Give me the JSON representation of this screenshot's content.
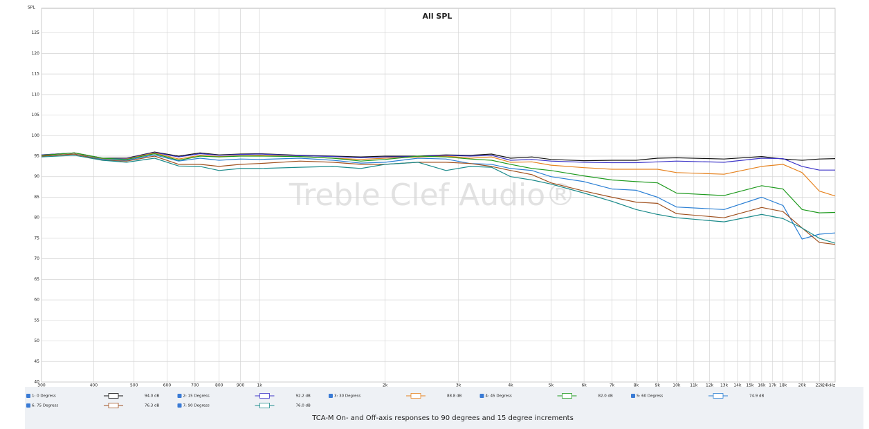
{
  "chart_data": {
    "type": "line",
    "title": "All SPL",
    "ylabel": "SPL",
    "watermark": "Treble Clef Audio®",
    "caption": "TCA-M On- and Off-axis responses to 90 degrees and 15 degree increments",
    "log_x": true,
    "grid": true,
    "xlim": [
      300,
      24000
    ],
    "ylim": [
      40,
      131
    ],
    "xticks": [
      300,
      400,
      500,
      600,
      700,
      800,
      900,
      {
        "value": 1000,
        "label": "1k"
      },
      {
        "value": 2000,
        "label": "2k"
      },
      {
        "value": 3000,
        "label": "3k"
      },
      {
        "value": 4000,
        "label": "4k"
      },
      {
        "value": 5000,
        "label": "5k"
      },
      {
        "value": 6000,
        "label": "6k"
      },
      {
        "value": 7000,
        "label": "7k"
      },
      {
        "value": 8000,
        "label": "8k"
      },
      {
        "value": 9000,
        "label": "9k"
      },
      {
        "value": 10000,
        "label": "10k"
      },
      {
        "value": 11000,
        "label": "11k"
      },
      {
        "value": 12000,
        "label": "12k"
      },
      {
        "value": 13000,
        "label": "13k"
      },
      {
        "value": 14000,
        "label": "14k"
      },
      {
        "value": 15000,
        "label": "15k"
      },
      {
        "value": 16000,
        "label": "16k"
      },
      {
        "value": 17000,
        "label": "17k"
      },
      {
        "value": 18000,
        "label": "18k"
      },
      {
        "value": 20000,
        "label": "20k"
      },
      {
        "value": 22000,
        "label": "22k"
      },
      {
        "value": 24000,
        "label": "24kHz"
      }
    ],
    "yticks": [
      40,
      45,
      50,
      55,
      60,
      65,
      70,
      75,
      80,
      85,
      90,
      95,
      100,
      105,
      110,
      115,
      120,
      125
    ],
    "x": [
      300,
      360,
      420,
      480,
      560,
      640,
      720,
      800,
      900,
      1000,
      1250,
      1500,
      1750,
      2000,
      2400,
      2800,
      3200,
      3600,
      4000,
      4500,
      5000,
      6000,
      7000,
      8000,
      9000,
      10000,
      13000,
      16000,
      18000,
      20000,
      22000,
      24000
    ],
    "series": [
      {
        "name": "1: 0 Degress",
        "level": "94.0 dB",
        "color": "#111111",
        "values": [
          95.3,
          95.8,
          94.5,
          94.5,
          96,
          95,
          95.8,
          95.3,
          95.5,
          95.6,
          95.2,
          95,
          94.8,
          95,
          95,
          95.3,
          95.2,
          95.5,
          94.5,
          94.8,
          94.2,
          93.9,
          94,
          94,
          94.5,
          94.6,
          94.3,
          94.9,
          94.3,
          94,
          94.3,
          94.4
        ]
      },
      {
        "name": "2: 15 Degress",
        "level": "92.2 dB",
        "color": "#3d35c8",
        "values": [
          95.3,
          95.8,
          94.4,
          94.4,
          95.9,
          94.8,
          95.6,
          95.2,
          95.4,
          95.5,
          95.1,
          94.9,
          94.6,
          94.8,
          94.9,
          95.2,
          95,
          95.2,
          94,
          94.2,
          93.8,
          93.5,
          93.4,
          93.4,
          93.6,
          93.8,
          93.5,
          94.5,
          94.4,
          92.5,
          91.6,
          91.6
        ]
      },
      {
        "name": "3: 30 Degress",
        "level": "88.8 dB",
        "color": "#e6821e",
        "values": [
          95.2,
          95.8,
          94.3,
          94.3,
          95.8,
          94.3,
          95.2,
          94.9,
          95.1,
          95.2,
          94.9,
          94.5,
          94.2,
          94.5,
          94.8,
          95,
          94.5,
          94.8,
          93.5,
          93.6,
          92.8,
          92.2,
          91.8,
          91.8,
          91.8,
          91,
          90.6,
          92.5,
          93,
          91,
          86.5,
          85.3
        ]
      },
      {
        "name": "4: 45 Degress",
        "level": "82.0 dB",
        "color": "#1e9a1e",
        "values": [
          95.2,
          95.8,
          94.5,
          94.2,
          95.6,
          94,
          95,
          94.8,
          95,
          95,
          94.9,
          94.5,
          93.8,
          94.2,
          95,
          94.8,
          94.3,
          94,
          93,
          92,
          91.5,
          90.2,
          89.2,
          88.8,
          88.5,
          86,
          85.4,
          87.8,
          87,
          82,
          81.2,
          81.3
        ]
      },
      {
        "name": "5: 60 Degress",
        "level": "74.9 dB",
        "color": "#2a7fd4",
        "values": [
          95,
          95.5,
          94.2,
          94,
          95.3,
          93.8,
          94.5,
          94,
          94.3,
          94.2,
          94.5,
          94,
          93.3,
          93.5,
          94.5,
          94.3,
          93.2,
          93,
          92,
          91.5,
          90,
          88.8,
          87,
          86.7,
          85,
          82.6,
          82,
          85,
          83,
          74.8,
          76,
          76.3
        ]
      },
      {
        "name": "6: 75 Degress",
        "level": "76.3 dB",
        "color": "#a0501e",
        "values": [
          95,
          95.5,
          94,
          93.8,
          95,
          93,
          93,
          92.5,
          93,
          93.2,
          93.8,
          93.5,
          93,
          93,
          93.5,
          93.5,
          93.2,
          92.5,
          91.5,
          90.5,
          88.5,
          86.5,
          85,
          83.8,
          83.5,
          81,
          80,
          82.5,
          81.5,
          77.5,
          74,
          73.5
        ]
      },
      {
        "name": "7: 90 Degress",
        "level": "76.0 dB",
        "color": "#1a8a8a",
        "values": [
          94.8,
          95.2,
          94,
          93.5,
          94.5,
          92.6,
          92.5,
          91.5,
          92,
          92,
          92.3,
          92.5,
          92,
          93,
          93.5,
          91.5,
          92.5,
          92.3,
          90,
          89.2,
          88.2,
          86,
          84,
          82,
          80.8,
          80,
          79,
          80.8,
          79.8,
          77.5,
          75,
          73.8
        ]
      }
    ]
  }
}
